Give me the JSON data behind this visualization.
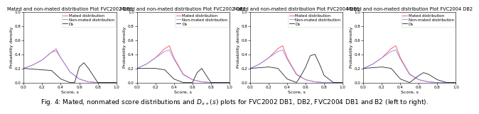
{
  "titles": [
    "Mated and non-mated distribution Plot FVC2002 DB1",
    "Mated and non-mated distribution Plot FVC2002 DB2",
    "Mated and non-mated distribution Plot FVC2004 DB1",
    "Mated and non-mated distribution Plot FVC2004 DB2"
  ],
  "xlabel": "Score, s",
  "ylabel": "Probability density",
  "xlim": [
    0,
    1
  ],
  "ylim": [
    0,
    1
  ],
  "legend_labels": [
    "Mated distribution",
    "Non-mated distribution",
    "Ds"
  ],
  "line_colors": [
    "#ff4444",
    "#8888ff",
    "#222222"
  ],
  "plots": [
    {
      "mated_x": [
        0.0,
        0.1,
        0.2,
        0.3,
        0.35,
        0.4,
        0.5,
        0.6,
        0.7,
        0.8,
        1.0
      ],
      "mated_y": [
        0.2,
        0.25,
        0.32,
        0.43,
        0.45,
        0.35,
        0.15,
        0.05,
        0.01,
        0.0,
        0.0
      ],
      "nonmated_x": [
        0.0,
        0.1,
        0.2,
        0.3,
        0.35,
        0.4,
        0.5,
        0.6,
        0.7,
        0.8,
        1.0
      ],
      "nonmated_y": [
        0.2,
        0.25,
        0.32,
        0.43,
        0.48,
        0.35,
        0.15,
        0.05,
        0.01,
        0.0,
        0.0
      ],
      "ds_x": [
        0.0,
        0.1,
        0.2,
        0.3,
        0.4,
        0.5,
        0.55,
        0.6,
        0.65,
        0.7,
        0.8,
        1.0
      ],
      "ds_y": [
        0.2,
        0.19,
        0.18,
        0.17,
        0.05,
        0.0,
        0.0,
        0.22,
        0.28,
        0.2,
        0.0,
        0.0
      ]
    },
    {
      "mated_x": [
        0.0,
        0.1,
        0.2,
        0.3,
        0.35,
        0.4,
        0.5,
        0.6,
        0.7,
        0.8,
        1.0
      ],
      "mated_y": [
        0.2,
        0.26,
        0.35,
        0.48,
        0.52,
        0.35,
        0.12,
        0.04,
        0.01,
        0.0,
        0.0
      ],
      "nonmated_x": [
        0.0,
        0.1,
        0.2,
        0.3,
        0.35,
        0.4,
        0.5,
        0.6,
        0.7,
        0.8,
        1.0
      ],
      "nonmated_y": [
        0.2,
        0.26,
        0.35,
        0.44,
        0.46,
        0.33,
        0.11,
        0.04,
        0.01,
        0.0,
        0.0
      ],
      "ds_x": [
        0.0,
        0.1,
        0.2,
        0.3,
        0.4,
        0.5,
        0.6,
        0.65,
        0.7,
        0.8,
        1.0
      ],
      "ds_y": [
        0.2,
        0.2,
        0.2,
        0.18,
        0.05,
        0.0,
        0.0,
        0.14,
        0.2,
        0.0,
        0.0
      ]
    },
    {
      "mated_x": [
        0.0,
        0.1,
        0.2,
        0.3,
        0.35,
        0.4,
        0.5,
        0.6,
        0.7,
        0.8,
        1.0
      ],
      "mated_y": [
        0.2,
        0.26,
        0.35,
        0.48,
        0.52,
        0.35,
        0.12,
        0.04,
        0.01,
        0.0,
        0.0
      ],
      "nonmated_x": [
        0.0,
        0.1,
        0.2,
        0.3,
        0.35,
        0.4,
        0.5,
        0.6,
        0.7,
        0.8,
        1.0
      ],
      "nonmated_y": [
        0.2,
        0.26,
        0.35,
        0.44,
        0.46,
        0.33,
        0.11,
        0.04,
        0.01,
        0.0,
        0.0
      ],
      "ds_x": [
        0.0,
        0.1,
        0.2,
        0.3,
        0.4,
        0.5,
        0.55,
        0.6,
        0.65,
        0.7,
        0.75,
        0.8,
        0.9,
        1.0
      ],
      "ds_y": [
        0.2,
        0.21,
        0.22,
        0.2,
        0.05,
        0.0,
        0.1,
        0.22,
        0.38,
        0.4,
        0.26,
        0.1,
        0.0,
        0.0
      ]
    },
    {
      "mated_x": [
        0.0,
        0.1,
        0.2,
        0.3,
        0.35,
        0.4,
        0.5,
        0.6,
        0.7,
        0.8,
        1.0
      ],
      "mated_y": [
        0.2,
        0.26,
        0.35,
        0.48,
        0.52,
        0.35,
        0.12,
        0.04,
        0.01,
        0.0,
        0.0
      ],
      "nonmated_x": [
        0.0,
        0.1,
        0.2,
        0.3,
        0.35,
        0.4,
        0.5,
        0.6,
        0.7,
        0.8,
        1.0
      ],
      "nonmated_y": [
        0.2,
        0.26,
        0.35,
        0.44,
        0.46,
        0.33,
        0.11,
        0.04,
        0.01,
        0.0,
        0.0
      ],
      "ds_x": [
        0.0,
        0.1,
        0.2,
        0.3,
        0.4,
        0.5,
        0.55,
        0.6,
        0.65,
        0.7,
        0.75,
        0.8,
        0.9,
        1.0
      ],
      "ds_y": [
        0.2,
        0.21,
        0.22,
        0.2,
        0.05,
        0.0,
        0.05,
        0.1,
        0.14,
        0.12,
        0.08,
        0.04,
        0.0,
        0.0
      ]
    }
  ],
  "caption": "Fig. 4: Mated, nonmated score distributions and D_{x+}(s) plots for FVC2002 DB1, DB2, FVC2004 DB1 and B2 (left to right).",
  "caption_fontsize": 6.5,
  "title_fontsize": 4.8,
  "axis_fontsize": 4.5,
  "tick_fontsize": 4.0,
  "legend_fontsize": 4.0,
  "line_width": 0.6
}
